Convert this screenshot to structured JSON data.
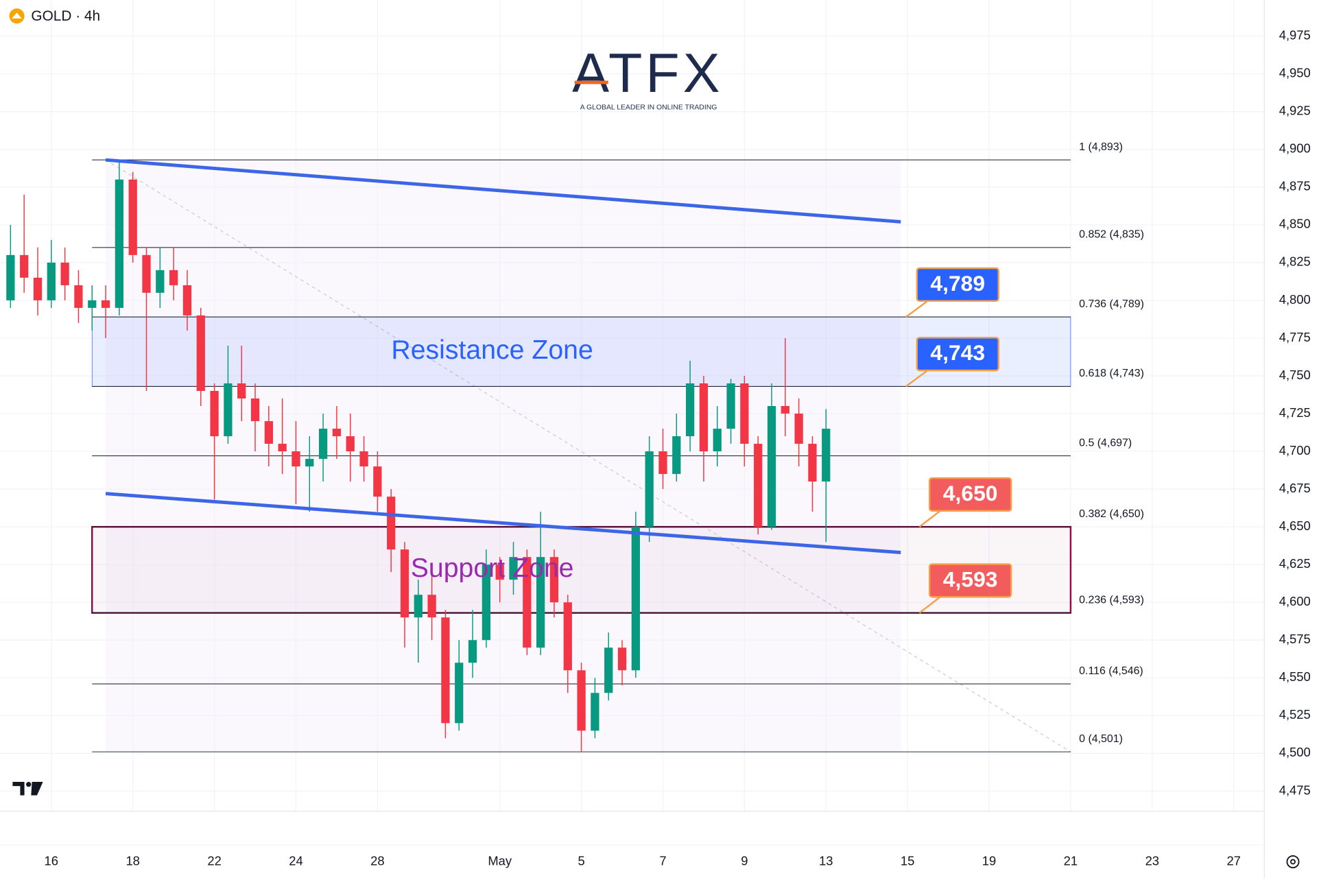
{
  "header": {
    "symbol": "GOLD · 4h"
  },
  "logo": {
    "name": "ATFX",
    "tagline": "A GLOBAL LEADER IN ONLINE TRADING"
  },
  "chart_data": {
    "type": "candlestick",
    "x": [
      -6,
      -4,
      -2,
      0,
      2,
      4,
      6,
      8,
      10,
      12,
      14,
      16,
      18,
      20,
      22,
      24,
      26,
      28,
      30,
      32,
      34,
      36,
      38,
      40,
      42,
      44,
      46,
      48,
      50,
      52,
      54,
      56,
      58,
      60,
      62,
      64,
      66,
      68,
      70,
      72,
      74,
      76,
      78,
      80,
      82,
      84,
      86,
      88,
      90,
      92,
      94,
      96,
      98,
      100,
      102,
      104,
      106,
      108,
      110,
      112,
      114
    ],
    "open": [
      4800,
      4830,
      4815,
      4800,
      4825,
      4810,
      4795,
      4800,
      4795,
      4880,
      4830,
      4805,
      4820,
      4810,
      4790,
      4740,
      4710,
      4745,
      4735,
      4720,
      4705,
      4700,
      4690,
      4695,
      4715,
      4710,
      4700,
      4690,
      4670,
      4635,
      4590,
      4605,
      4590,
      4520,
      4560,
      4575,
      4625,
      4615,
      4630,
      4570,
      4630,
      4600,
      4555,
      4515,
      4540,
      4570,
      4555,
      4650,
      4700,
      4685,
      4710,
      4745,
      4700,
      4715,
      4745,
      4705,
      4650,
      4730,
      4725,
      4705,
      4680
    ],
    "high": [
      4850,
      4870,
      4835,
      4840,
      4835,
      4820,
      4810,
      4810,
      4893,
      4885,
      4835,
      4835,
      4835,
      4820,
      4795,
      4745,
      4770,
      4770,
      4745,
      4730,
      4735,
      4720,
      4710,
      4725,
      4730,
      4725,
      4710,
      4700,
      4675,
      4640,
      4615,
      4620,
      4595,
      4575,
      4595,
      4635,
      4630,
      4640,
      4635,
      4660,
      4635,
      4605,
      4560,
      4550,
      4580,
      4575,
      4660,
      4710,
      4715,
      4725,
      4760,
      4750,
      4730,
      4748,
      4750,
      4710,
      4745,
      4775,
      4735,
      4710,
      4728
    ],
    "low": [
      4795,
      4805,
      4790,
      4795,
      4800,
      4785,
      4780,
      4775,
      4790,
      4825,
      4740,
      4795,
      4800,
      4780,
      4730,
      4668,
      4705,
      4720,
      4700,
      4690,
      4685,
      4665,
      4660,
      4680,
      4695,
      4680,
      4680,
      4660,
      4620,
      4570,
      4560,
      4575,
      4510,
      4515,
      4550,
      4570,
      4600,
      4605,
      4565,
      4565,
      4590,
      4540,
      4501,
      4510,
      4535,
      4545,
      4550,
      4640,
      4675,
      4680,
      4700,
      4680,
      4690,
      4705,
      4690,
      4645,
      4648,
      4710,
      4690,
      4660,
      4640
    ],
    "close": [
      4830,
      4815,
      4800,
      4825,
      4810,
      4795,
      4800,
      4795,
      4880,
      4830,
      4805,
      4820,
      4810,
      4790,
      4740,
      4710,
      4745,
      4735,
      4720,
      4705,
      4700,
      4690,
      4695,
      4715,
      4710,
      4700,
      4690,
      4670,
      4635,
      4590,
      4605,
      4590,
      4520,
      4560,
      4575,
      4625,
      4615,
      4630,
      4570,
      4630,
      4600,
      4555,
      4515,
      4540,
      4570,
      4555,
      4650,
      4700,
      4685,
      4710,
      4745,
      4700,
      4715,
      4745,
      4705,
      4650,
      4730,
      4725,
      4705,
      4680,
      4715
    ],
    "up_color": "#089981",
    "down_color": "#f23645",
    "xlim": [
      -7.55,
      178.5
    ],
    "xticks": [
      {
        "value": 0,
        "label": "16"
      },
      {
        "value": 12,
        "label": "18"
      },
      {
        "value": 24,
        "label": "22"
      },
      {
        "value": 36,
        "label": "24"
      },
      {
        "value": 48,
        "label": "28"
      },
      {
        "value": 66,
        "label": "May"
      },
      {
        "value": 78,
        "label": "5"
      },
      {
        "value": 90,
        "label": "7"
      },
      {
        "value": 102,
        "label": "9"
      },
      {
        "value": 114,
        "label": "13"
      },
      {
        "value": 126,
        "label": "15"
      },
      {
        "value": 138,
        "label": "19"
      },
      {
        "value": 150,
        "label": "21"
      },
      {
        "value": 162,
        "label": "23"
      },
      {
        "value": 174,
        "label": "27"
      }
    ],
    "ylim": [
      4461.6,
      4998.9
    ],
    "yticks": [
      {
        "value": 4475,
        "label": "4,475"
      },
      {
        "value": 4500,
        "label": "4,500"
      },
      {
        "value": 4525,
        "label": "4,525"
      },
      {
        "value": 4550,
        "label": "4,550"
      },
      {
        "value": 4575,
        "label": "4,575"
      },
      {
        "value": 4600,
        "label": "4,600"
      },
      {
        "value": 4625,
        "label": "4,625"
      },
      {
        "value": 4650,
        "label": "4,650"
      },
      {
        "value": 4675,
        "label": "4,675"
      },
      {
        "value": 4700,
        "label": "4,700"
      },
      {
        "value": 4725,
        "label": "4,725"
      },
      {
        "value": 4750,
        "label": "4,750"
      },
      {
        "value": 4775,
        "label": "4,775"
      },
      {
        "value": 4800,
        "label": "4,800"
      },
      {
        "value": 4825,
        "label": "4,825"
      },
      {
        "value": 4850,
        "label": "4,850"
      },
      {
        "value": 4875,
        "label": "4,875"
      },
      {
        "value": 4900,
        "label": "4,900"
      },
      {
        "value": 4925,
        "label": "4,925"
      },
      {
        "value": 4950,
        "label": "4,950"
      },
      {
        "value": 4975,
        "label": "4,975"
      }
    ],
    "grid": true,
    "fib_x": [
      6,
      150
    ],
    "fib_levels": [
      {
        "value": 4893,
        "label": "1 (4,893)"
      },
      {
        "value": 4835,
        "label": "0.852 (4,835)"
      },
      {
        "value": 4789,
        "label": "0.736 (4,789)"
      },
      {
        "value": 4743,
        "label": "0.618 (4,743)"
      },
      {
        "value": 4697,
        "label": "0.5 (4,697)"
      },
      {
        "value": 4650,
        "label": "0.382 (4,650)"
      },
      {
        "value": 4593,
        "label": "0.236 (4,593)"
      },
      {
        "value": 4546,
        "label": "0.116 (4,546)"
      },
      {
        "value": 4501,
        "label": "0 (4,501)"
      }
    ],
    "trendlines": [
      {
        "color": "#3d66e6",
        "x": [
          8,
          125
        ],
        "values": [
          4893,
          4852
        ]
      },
      {
        "color": "#3d66e6",
        "x": [
          8,
          125
        ],
        "values": [
          4672,
          4633
        ]
      }
    ],
    "zones": [
      {
        "label": "Resistance Zone",
        "values": [
          4743,
          4789
        ],
        "x": [
          6,
          150
        ],
        "color": "#2962ff",
        "text_color": "#2962ff"
      },
      {
        "label": "Support Zone",
        "values": [
          4593,
          4650
        ],
        "x": [
          6,
          150
        ],
        "color": "#880e4f",
        "text_color": "#9c27b0"
      }
    ],
    "callouts": [
      {
        "value": 4789,
        "label": "4,789",
        "color": "#2962ff"
      },
      {
        "value": 4743,
        "label": "4,743",
        "color": "#2962ff"
      },
      {
        "value": 4650,
        "label": "4,650",
        "color": "#f25c5c"
      },
      {
        "value": 4593,
        "label": "4,593",
        "color": "#f25c5c"
      }
    ]
  }
}
